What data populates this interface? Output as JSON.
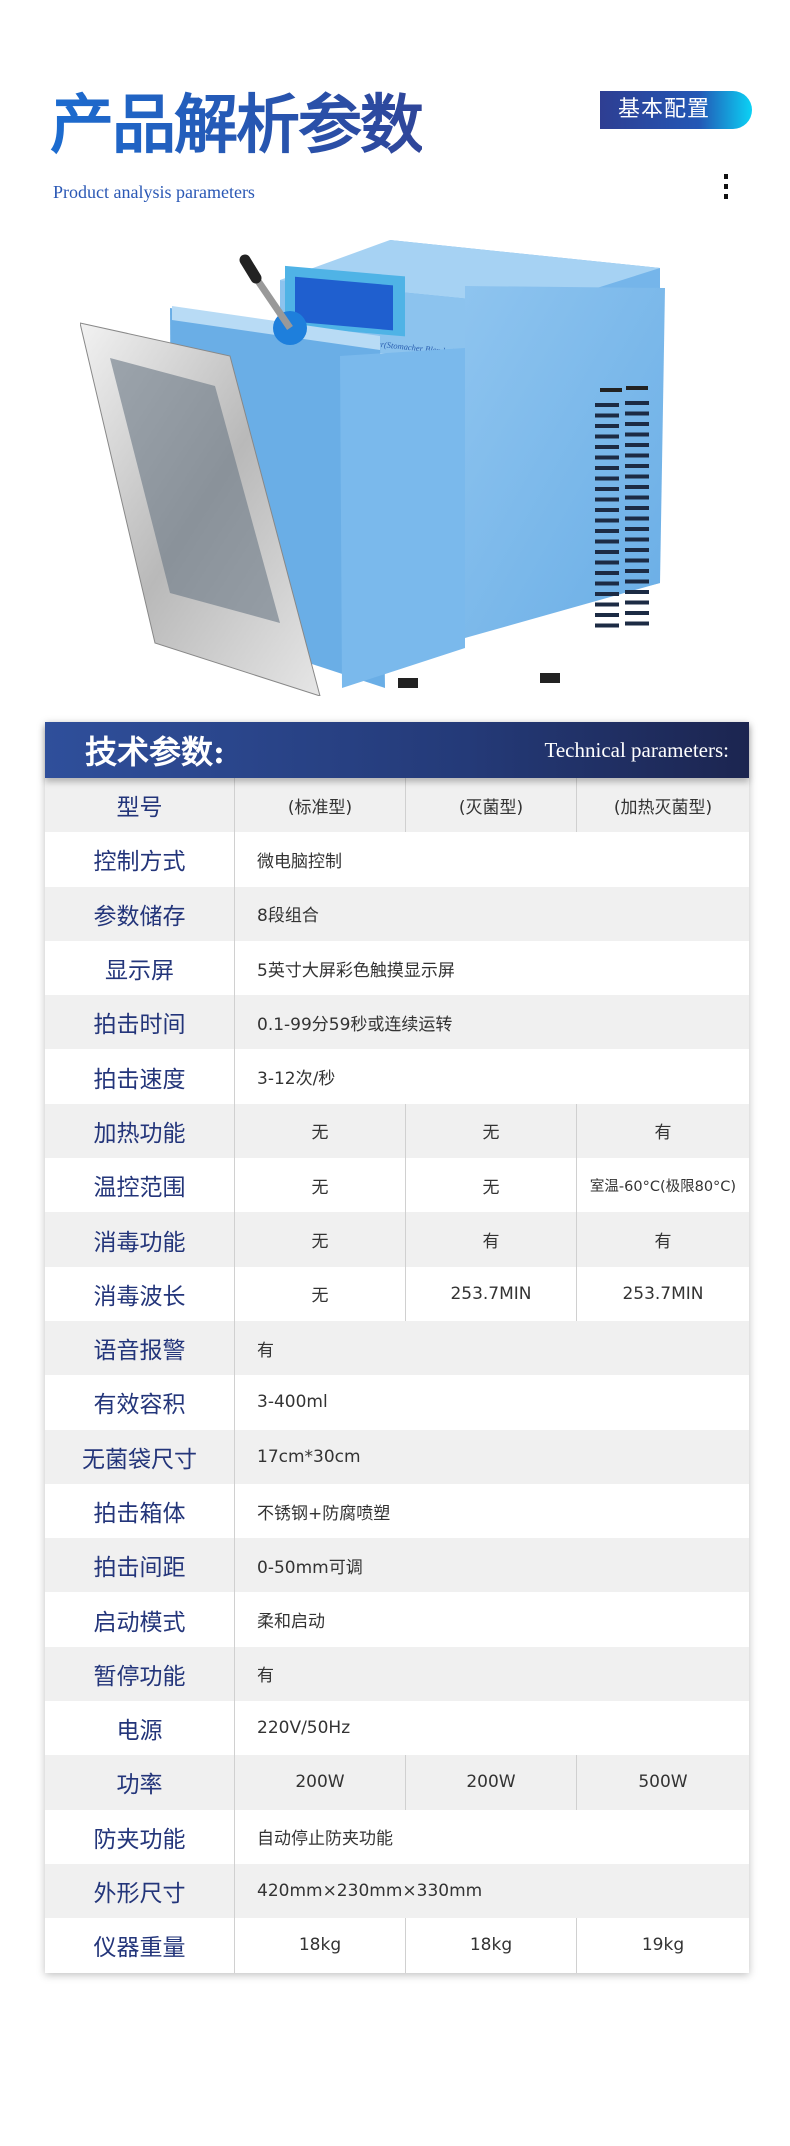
{
  "header": {
    "title": "产品解析参数",
    "subtitle": "Product analysis parameters",
    "badge": "基本配置",
    "menu_icon": "vertical-dots-icon"
  },
  "colors": {
    "brand_blue": "#2460bd",
    "header_dark": "#1c2550",
    "badge_cyan": "#0bd2f5"
  },
  "product_image": {
    "label": "Sterile Homogenizer(Stomacher Blender)"
  },
  "table": {
    "title_zh": "技术参数:",
    "title_en": "Technical parameters:",
    "rows": [
      {
        "label": "型号",
        "values": [
          "(标准型)",
          "(灭菌型)",
          "(加热灭菌型)"
        ]
      },
      {
        "label": "控制方式",
        "value": "微电脑控制"
      },
      {
        "label": "参数储存",
        "value": "8段组合"
      },
      {
        "label": "显示屏",
        "value": "5英寸大屏彩色触摸显示屏"
      },
      {
        "label": "拍击时间",
        "value": "0.1-99分59秒或连续运转"
      },
      {
        "label": "拍击速度",
        "value": "3-12次/秒"
      },
      {
        "label": "加热功能",
        "values": [
          "无",
          "无",
          "有"
        ]
      },
      {
        "label": "温控范围",
        "values": [
          "无",
          "无",
          "室温-60°C(极限80°C)"
        ]
      },
      {
        "label": "消毒功能",
        "values": [
          "无",
          "有",
          "有"
        ]
      },
      {
        "label": "消毒波长",
        "values": [
          "无",
          "253.7MIN",
          "253.7MIN"
        ]
      },
      {
        "label": "语音报警",
        "value": "有"
      },
      {
        "label": "有效容积",
        "value": "3-400ml"
      },
      {
        "label": "无菌袋尺寸",
        "value": "17cm*30cm"
      },
      {
        "label": "拍击箱体",
        "value": "不锈钢+防腐喷塑"
      },
      {
        "label": "拍击间距",
        "value": "0-50mm可调"
      },
      {
        "label": "启动模式",
        "value": "柔和启动"
      },
      {
        "label": "暂停功能",
        "value": "有"
      },
      {
        "label": "电源",
        "value": "220V/50Hz"
      },
      {
        "label": "功率",
        "values": [
          "200W",
          "200W",
          "500W"
        ]
      },
      {
        "label": "防夹功能",
        "value": "自动停止防夹功能"
      },
      {
        "label": "外形尺寸",
        "value": "420mm×230mm×330mm"
      },
      {
        "label": "仪器重量",
        "values": [
          "18kg",
          "18kg",
          "19kg"
        ]
      }
    ]
  }
}
